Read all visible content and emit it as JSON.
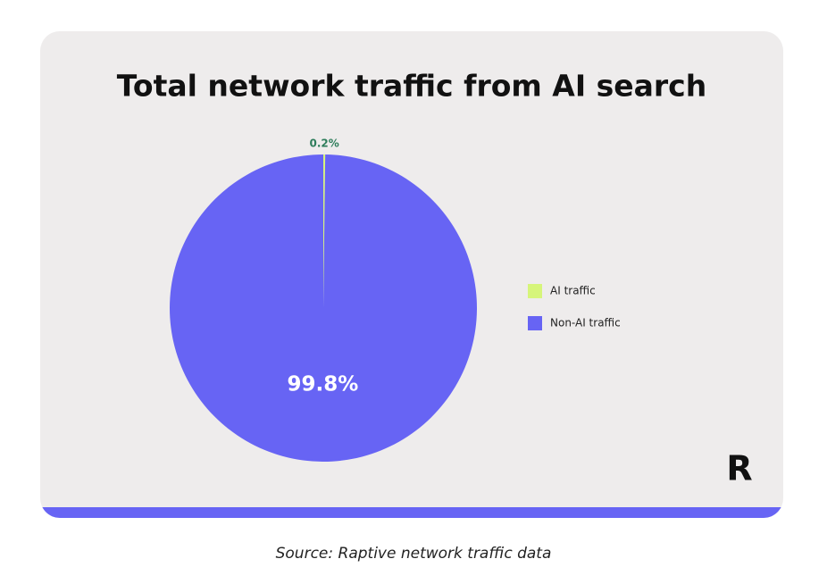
{
  "chart_data": {
    "type": "pie",
    "title": "Total network traffic from AI search",
    "categories": [
      "AI traffic",
      "Non-AI traffic"
    ],
    "values": [
      0.2,
      99.8
    ],
    "value_labels": [
      "0.2%",
      "99.8%"
    ],
    "colors": [
      "#d6f57a",
      "#6764f4"
    ],
    "legend": "right"
  },
  "logo": "R",
  "source": "Source: Raptive network traffic data"
}
